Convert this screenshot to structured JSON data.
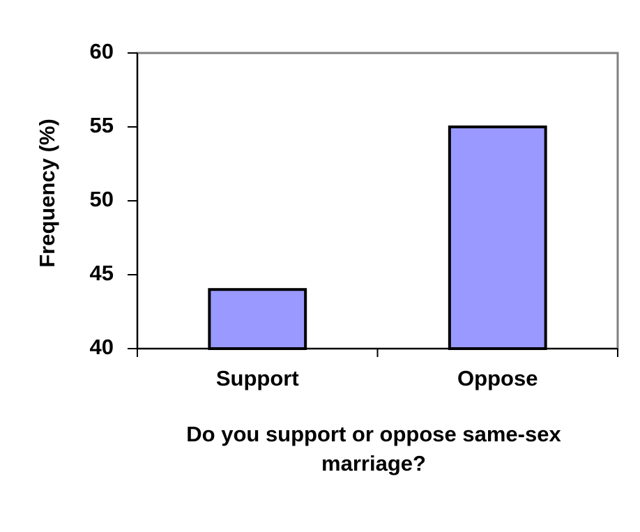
{
  "chart_data": {
    "type": "bar",
    "x_label": "Do you support or oppose same-sex marriage?",
    "y_label": "Frequency (%)",
    "categories": [
      "Support",
      "Oppose"
    ],
    "values": [
      44,
      55
    ],
    "color": "#9999ff",
    "ylim": [
      40,
      60
    ],
    "yticks": [
      40,
      45,
      50,
      55,
      60
    ],
    "grid": false
  }
}
